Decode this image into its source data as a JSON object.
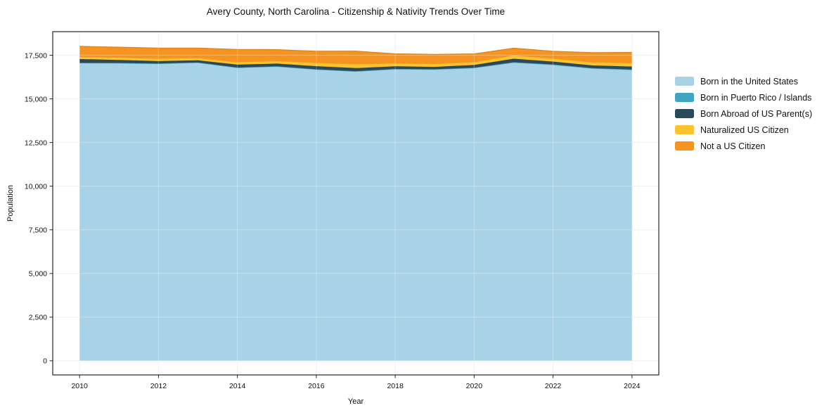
{
  "header": {
    "title": "Avery County, North Carolina - Citizenship & Nativity Trends Over Time"
  },
  "chart_data": {
    "type": "area",
    "stacked": true,
    "title": "Avery County, North Carolina - Citizenship & Nativity Trends Over Time",
    "xlabel": "Year",
    "ylabel": "Population",
    "x": [
      2010,
      2011,
      2012,
      2013,
      2014,
      2015,
      2016,
      2017,
      2018,
      2019,
      2020,
      2021,
      2022,
      2023,
      2024
    ],
    "series": [
      {
        "name": "Born in the United States",
        "color": "#a8d3e7",
        "values": [
          17050,
          17040,
          17010,
          17070,
          16780,
          16850,
          16680,
          16570,
          16700,
          16680,
          16770,
          17080,
          16950,
          16740,
          16660
        ]
      },
      {
        "name": "Born in Puerto Rico / Islands",
        "color": "#3fa5c2",
        "values": [
          20,
          20,
          20,
          20,
          20,
          20,
          20,
          20,
          20,
          20,
          20,
          20,
          25,
          25,
          25
        ]
      },
      {
        "name": "Born Abroad of US Parent(s)",
        "color": "#29495c",
        "values": [
          210,
          170,
          130,
          120,
          160,
          150,
          170,
          175,
          145,
          130,
          150,
          200,
          160,
          150,
          165
        ]
      },
      {
        "name": "Naturalized US Citizen",
        "color": "#fdc22d",
        "values": [
          130,
          140,
          150,
          140,
          150,
          160,
          200,
          230,
          175,
          180,
          175,
          200,
          175,
          185,
          205
        ]
      },
      {
        "name": "Not a US Citizen",
        "color": "#f79421",
        "values": [
          600,
          590,
          600,
          560,
          720,
          640,
          660,
          740,
          540,
          535,
          460,
          405,
          420,
          550,
          605
        ]
      }
    ],
    "xticks": [
      2010,
      2012,
      2014,
      2016,
      2018,
      2020,
      2022,
      2024
    ],
    "yticks": [
      0,
      2500,
      5000,
      7500,
      10000,
      12500,
      15000,
      17500
    ],
    "xlim": [
      2009.32,
      2024.68
    ],
    "ylim": [
      -810,
      18850
    ],
    "grid": true,
    "legend_position": "right"
  }
}
